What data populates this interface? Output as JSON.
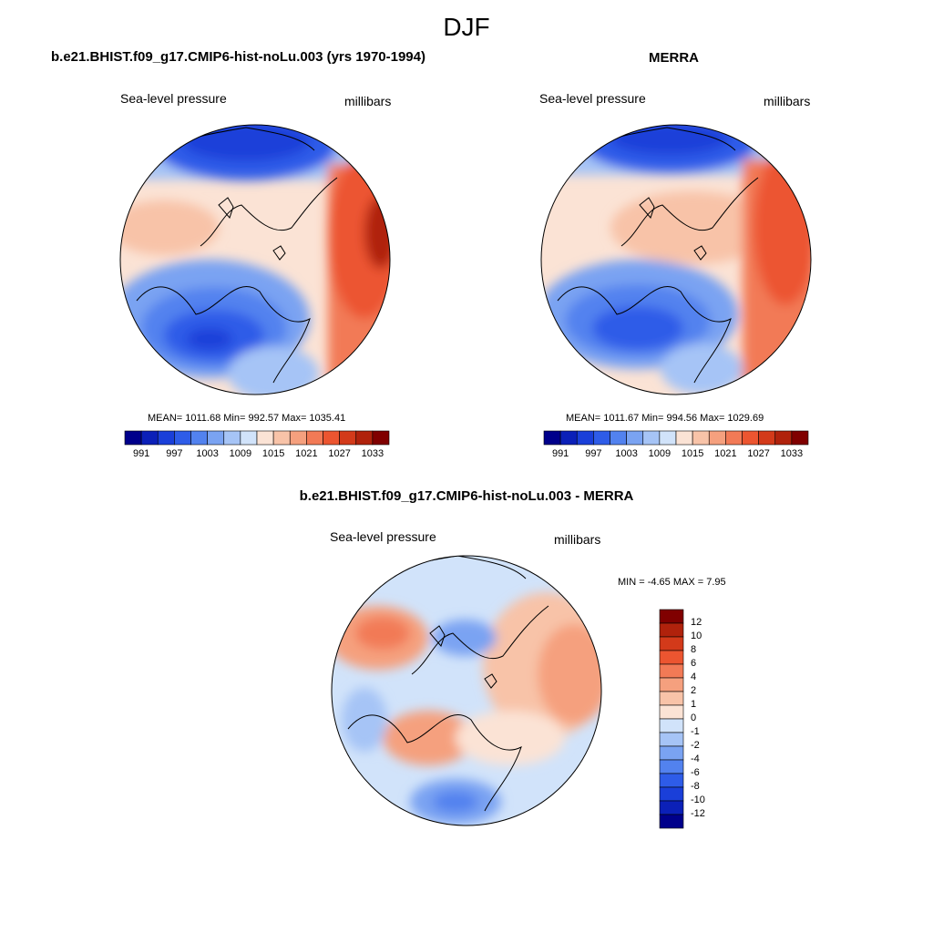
{
  "figure": {
    "season": "DJF",
    "panels": [
      {
        "title": "b.e21.BHIST.f09_g17.CMIP6-hist-noLu.003 (yrs 1970-1994)",
        "left_label": "Sea-level pressure",
        "right_label": "millibars",
        "stats": "MEAN= 1011.68  Min= 992.57  Max= 1035.41"
      },
      {
        "title": "MERRA",
        "left_label": "Sea-level pressure",
        "right_label": "millibars",
        "stats": "MEAN= 1011.67  Min= 994.56  Max= 1029.69"
      },
      {
        "title": "b.e21.BHIST.f09_g17.CMIP6-hist-noLu.003 - MERRA",
        "left_label": "Sea-level pressure",
        "right_label": "millibars",
        "stats": "MIN =  -4.65 MAX =   7.95"
      }
    ],
    "colorbar_abs": {
      "tick_labels": [
        "991",
        "997",
        "1003",
        "1009",
        "1015",
        "1021",
        "1027",
        "1033"
      ],
      "colors": [
        "#00008b",
        "#0b20b8",
        "#1a3fd9",
        "#2e5ce8",
        "#5282ef",
        "#7aa3f2",
        "#a6c4f6",
        "#d1e3fa",
        "#fbe3d5",
        "#f8c3a8",
        "#f5a07e",
        "#f27a56",
        "#ec5530",
        "#d33a1a",
        "#b0220c",
        "#800000"
      ]
    },
    "colorbar_diff": {
      "tick_labels": [
        "12",
        "10",
        "8",
        "6",
        "4",
        "2",
        "1",
        "0",
        "-1",
        "-2",
        "-4",
        "-6",
        "-8",
        "-10",
        "-12"
      ],
      "colors": [
        "#800000",
        "#b0220c",
        "#d33a1a",
        "#ec5530",
        "#f27a56",
        "#f5a07e",
        "#f8c3a8",
        "#fbe3d5",
        "#d1e3fa",
        "#a6c4f6",
        "#7aa3f2",
        "#5282ef",
        "#2e5ce8",
        "#1a3fd9",
        "#0b20b8",
        "#00008b"
      ]
    }
  }
}
